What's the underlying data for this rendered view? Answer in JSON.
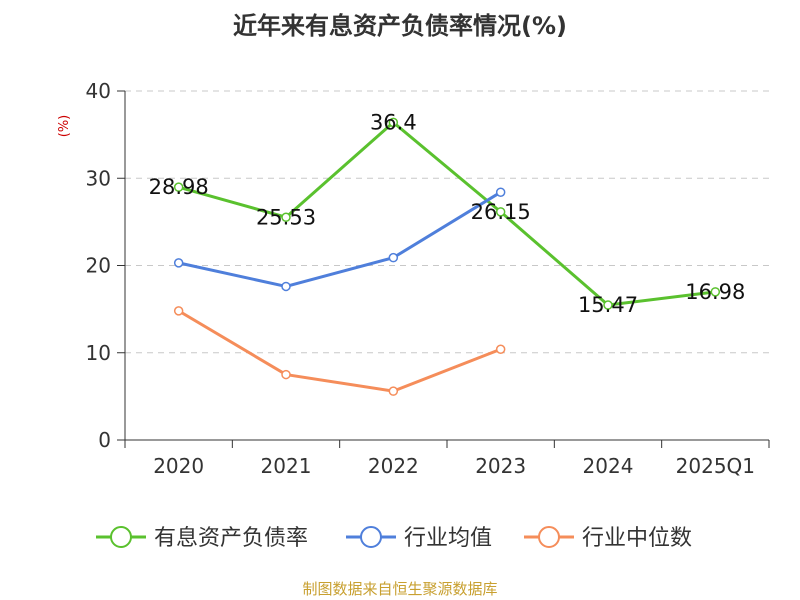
{
  "chart_data": {
    "type": "line",
    "title": "近年来有息资产负债率情况(%)",
    "ylabel": "(%)",
    "categories": [
      "2020",
      "2021",
      "2022",
      "2023",
      "2024",
      "2025Q1"
    ],
    "ylim": [
      0,
      40
    ],
    "yticks": [
      0,
      10,
      20,
      30,
      40
    ],
    "grid": true,
    "legend_position": "bottom",
    "series": [
      {
        "name": "有息资产负债率",
        "color": "#5ac12e",
        "values": [
          28.98,
          25.53,
          36.4,
          26.15,
          15.47,
          16.98
        ],
        "labels": [
          "28.98",
          "25.53",
          "36.4",
          "26.15",
          "15.47",
          "16.98"
        ]
      },
      {
        "name": "行业均值",
        "color": "#4f7fdb",
        "values": [
          20.3,
          17.6,
          20.9,
          28.4,
          null,
          null
        ]
      },
      {
        "name": "行业中位数",
        "color": "#f58d5a",
        "values": [
          14.8,
          7.5,
          5.6,
          10.4,
          null,
          null
        ]
      }
    ]
  },
  "source": {
    "text": "制图数据来自恒生聚源数据库",
    "color": "#c8a030"
  },
  "colors": {
    "axis": "#333333",
    "grid": "#c8c8c8",
    "ylabel": "#cc0000"
  }
}
